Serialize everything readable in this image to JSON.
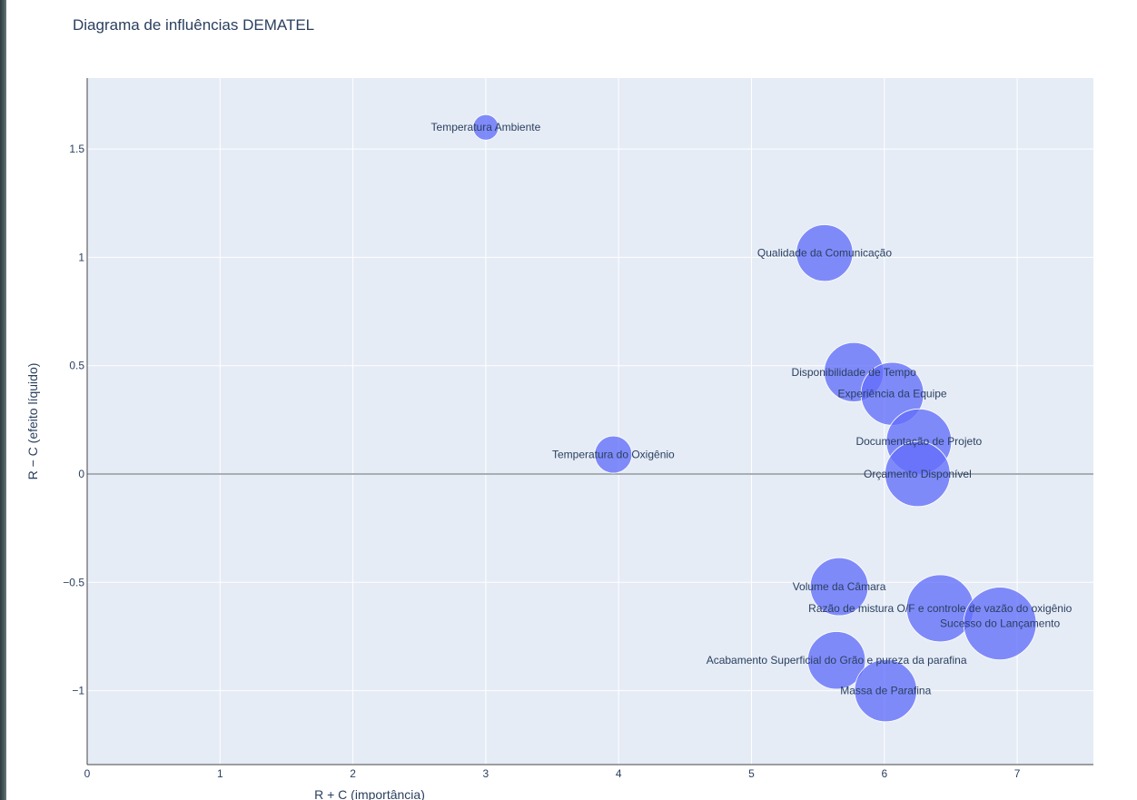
{
  "chart_data": {
    "type": "scatter",
    "title": "Diagrama de influências DEMATEL",
    "xlabel": "R + C  (importância)",
    "ylabel": "R − C  (efeito líquido)",
    "xlim": [
      0,
      7.6
    ],
    "ylim": [
      -1.33,
      1.83
    ],
    "grid": true,
    "zero_line": true,
    "x_ticks": [
      {
        "value": 0,
        "label": "0"
      },
      {
        "value": 1,
        "label": "1"
      },
      {
        "value": 2,
        "label": "2"
      },
      {
        "value": 3,
        "label": "3"
      },
      {
        "value": 4,
        "label": "4"
      },
      {
        "value": 5,
        "label": "5"
      },
      {
        "value": 6,
        "label": "6"
      },
      {
        "value": 7,
        "label": "7"
      }
    ],
    "y_ticks": [
      {
        "value": -1,
        "label": "−1"
      },
      {
        "value": -0.5,
        "label": "−0.5"
      },
      {
        "value": 0,
        "label": "0"
      },
      {
        "value": 0.5,
        "label": "0.5"
      },
      {
        "value": 1,
        "label": "1"
      },
      {
        "value": 1.5,
        "label": "1.5"
      }
    ],
    "marker_color": "#636efa",
    "points": [
      {
        "label": "Temperatura Ambiente",
        "x": 3.0,
        "y": 1.6
      },
      {
        "label": "Qualidade da Comunicação",
        "x": 5.55,
        "y": 1.02
      },
      {
        "label": "Disponibilidade de Tempo",
        "x": 5.77,
        "y": 0.47
      },
      {
        "label": "Experiência da Equipe",
        "x": 6.06,
        "y": 0.37
      },
      {
        "label": "Documentação de Projeto",
        "x": 6.26,
        "y": 0.15
      },
      {
        "label": "Temperatura do Oxigênio",
        "x": 3.96,
        "y": 0.09
      },
      {
        "label": "Orçamento Disponível",
        "x": 6.25,
        "y": 0.0
      },
      {
        "label": "Volume da Câmara",
        "x": 5.66,
        "y": -0.52
      },
      {
        "label": "Razão de mistura O/F e controle de vazão do oxigênio",
        "x": 6.42,
        "y": -0.62
      },
      {
        "label": "Sucesso do Lançamento",
        "x": 6.87,
        "y": -0.69
      },
      {
        "label": "Acabamento Superficial do Grão e pureza da parafina",
        "x": 5.64,
        "y": -0.86
      },
      {
        "label": "Massa de Parafina",
        "x": 6.01,
        "y": -1.0
      }
    ]
  }
}
